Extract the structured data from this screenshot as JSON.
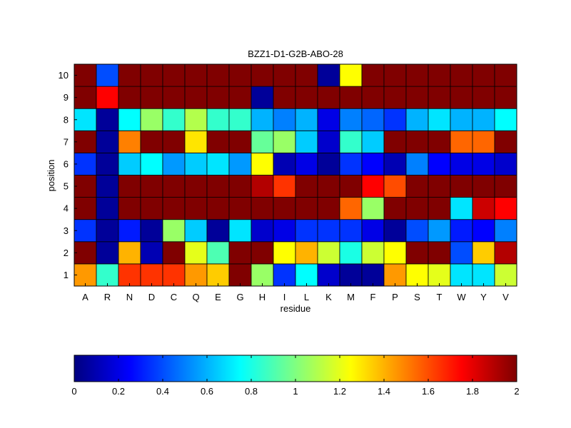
{
  "chart_data": {
    "type": "heatmap",
    "title": "BZZ1-D1-G2B-ABO-28",
    "xlabel": "residue",
    "ylabel": "position",
    "x_categories": [
      "A",
      "R",
      "N",
      "D",
      "C",
      "Q",
      "E",
      "G",
      "H",
      "I",
      "L",
      "K",
      "M",
      "F",
      "P",
      "S",
      "T",
      "W",
      "Y",
      "V"
    ],
    "y_categories": [
      "1",
      "2",
      "3",
      "4",
      "5",
      "6",
      "7",
      "8",
      "9",
      "10"
    ],
    "colormap": "jet",
    "clim": [
      0,
      2
    ],
    "colorbar": {
      "position": "bottom",
      "ticks": [
        0,
        0.2,
        0.4,
        0.6,
        0.8,
        1,
        1.2,
        1.4,
        1.6,
        1.8,
        2
      ],
      "tick_labels": [
        "0",
        "0.2",
        "0.4",
        "0.6",
        "0.8",
        "1",
        "1.2",
        "1.4",
        "1.6",
        "1.8",
        "2"
      ]
    },
    "values": [
      [
        1.45,
        0.85,
        1.65,
        1.65,
        1.65,
        1.45,
        1.35,
        2.0,
        1.05,
        0.35,
        0.75,
        0.15,
        0.05,
        0.05,
        1.45,
        1.25,
        1.2,
        0.7,
        0.7,
        1.15
      ],
      [
        2.0,
        0.05,
        1.4,
        0.1,
        2.0,
        1.2,
        0.9,
        2.0,
        2.0,
        1.25,
        1.4,
        1.15,
        0.8,
        1.15,
        1.25,
        2.0,
        2.0,
        0.4,
        1.35,
        1.9
      ],
      [
        0.35,
        0.05,
        0.3,
        0.05,
        1.05,
        0.65,
        0.05,
        0.7,
        0.15,
        0.2,
        0.35,
        0.35,
        0.35,
        0.2,
        0.05,
        0.4,
        0.55,
        0.3,
        0.25,
        0.5
      ],
      [
        2.0,
        0.05,
        2.0,
        2.0,
        2.0,
        2.0,
        2.0,
        2.0,
        2.0,
        2.0,
        2.0,
        2.0,
        1.55,
        1.05,
        2.0,
        2.0,
        2.0,
        0.7,
        1.85,
        1.75
      ],
      [
        2.0,
        0.05,
        2.0,
        2.0,
        2.0,
        2.0,
        2.0,
        2.0,
        1.9,
        1.65,
        2.0,
        2.0,
        2.0,
        1.75,
        1.6,
        2.0,
        2.0,
        2.0,
        2.0,
        2.0
      ],
      [
        0.35,
        0.05,
        0.65,
        0.75,
        0.55,
        0.65,
        0.7,
        0.55,
        1.25,
        0.1,
        0.2,
        0.05,
        0.35,
        0.25,
        0.1,
        0.5,
        0.25,
        0.2,
        0.2,
        0.15
      ],
      [
        2.0,
        0.05,
        1.5,
        2.0,
        2.0,
        1.3,
        2.0,
        2.0,
        0.95,
        1.05,
        0.65,
        0.15,
        0.85,
        0.65,
        2.0,
        2.0,
        2.0,
        1.55,
        1.55,
        2.0
      ],
      [
        0.7,
        0.05,
        0.75,
        1.05,
        0.85,
        1.1,
        0.85,
        0.85,
        0.6,
        0.5,
        0.6,
        0.2,
        0.5,
        0.45,
        0.35,
        0.6,
        0.7,
        0.6,
        0.6,
        0.75
      ],
      [
        2.0,
        1.75,
        2.0,
        2.0,
        2.0,
        2.0,
        2.0,
        2.0,
        0.05,
        2.0,
        2.0,
        2.0,
        2.0,
        2.0,
        2.0,
        2.0,
        2.0,
        2.0,
        2.0,
        2.0
      ],
      [
        2.0,
        0.4,
        2.0,
        2.0,
        2.0,
        2.0,
        2.0,
        2.0,
        2.0,
        2.0,
        2.0,
        0.05,
        1.25,
        2.0,
        2.0,
        2.0,
        2.0,
        2.0,
        2.0,
        2.0
      ]
    ]
  }
}
